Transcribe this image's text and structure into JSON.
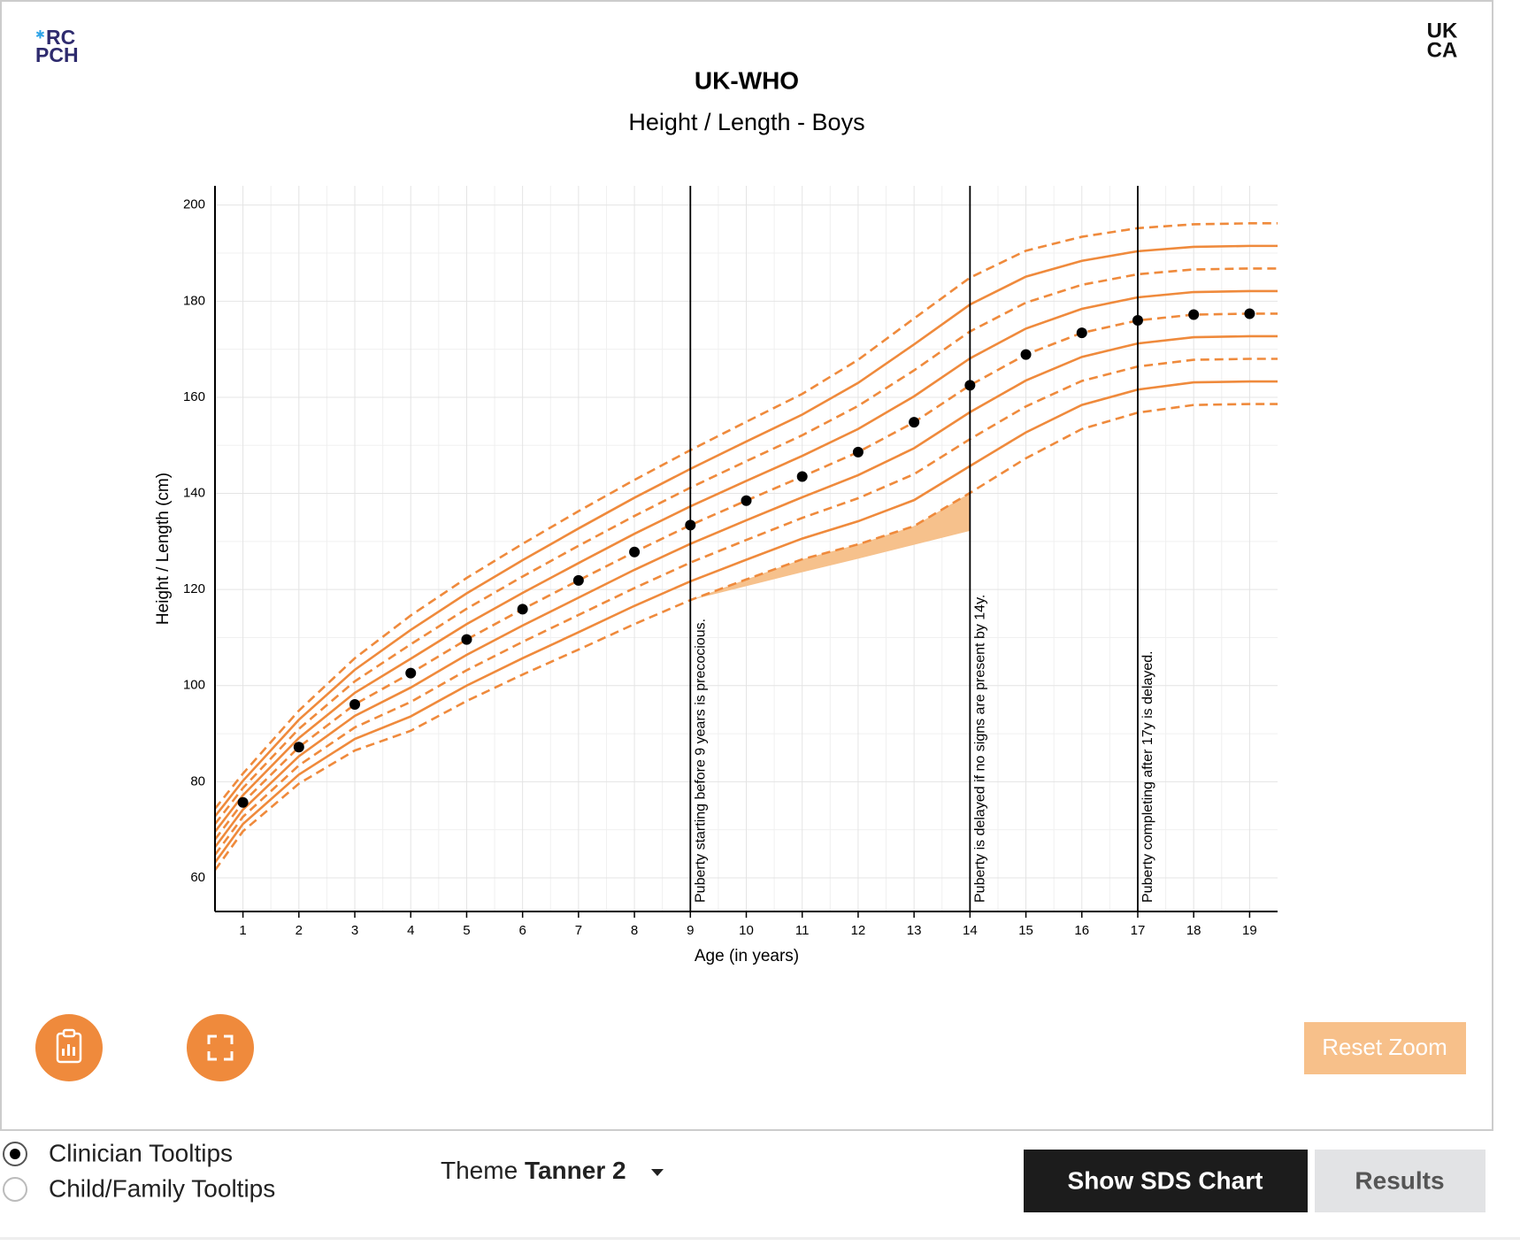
{
  "ui": {
    "logo_left": [
      "RC",
      "PCH"
    ],
    "logo_right": [
      "UK",
      "CA"
    ],
    "reset_zoom": "Reset Zoom",
    "radios": [
      {
        "label": "Clinician Tooltips",
        "checked": true
      },
      {
        "label": "Child/Family Tooltips",
        "checked": false
      }
    ],
    "theme_label": "Theme",
    "theme_value": "Tanner 2",
    "buttons": [
      "Show SDS Chart",
      "Results"
    ]
  },
  "chart_data": {
    "type": "line",
    "title": "UK-WHO",
    "subtitle": "Height / Length - Boys",
    "xlabel": "Age (in years)",
    "ylabel": "Height / Length (cm)",
    "xlim": [
      0.5,
      19.5
    ],
    "ylim": [
      53,
      204
    ],
    "xticks": [
      1,
      2,
      3,
      4,
      5,
      6,
      7,
      8,
      9,
      10,
      11,
      12,
      13,
      14,
      15,
      16,
      17,
      18,
      19
    ],
    "yticks": [
      60,
      80,
      100,
      120,
      140,
      160,
      180,
      200
    ],
    "grid": true,
    "minor_grid": true,
    "x": [
      0.5,
      1,
      2,
      3,
      4,
      5,
      6,
      7,
      8,
      9,
      10,
      11,
      12,
      13,
      14,
      15,
      16,
      17,
      18,
      19,
      19.5
    ],
    "series": [
      {
        "color": "#ef8a3c",
        "dash": true,
        "values": [
          61.6,
          69.7,
          79.6,
          86.5,
          90.6,
          96.8,
          102.3,
          107.5,
          112.8,
          117.8,
          122.1,
          126.3,
          129.4,
          133.2,
          140.1,
          147.3,
          153.4,
          156.8,
          158.4,
          158.6,
          158.6
        ]
      },
      {
        "color": "#ef8a3c",
        "dash": false,
        "values": [
          63.2,
          71.2,
          81.5,
          88.9,
          93.6,
          100.0,
          105.7,
          111.1,
          116.6,
          121.7,
          126.2,
          130.6,
          134.2,
          138.6,
          145.7,
          152.7,
          158.4,
          161.6,
          163.1,
          163.3,
          163.3
        ]
      },
      {
        "color": "#ef8a3c",
        "dash": true,
        "values": [
          64.8,
          72.7,
          83.4,
          91.3,
          96.6,
          103.2,
          109.1,
          114.7,
          120.3,
          125.6,
          130.3,
          134.9,
          139.0,
          144.0,
          151.3,
          158.1,
          163.4,
          166.4,
          167.8,
          168.0,
          168.0
        ]
      },
      {
        "color": "#ef8a3c",
        "dash": false,
        "values": [
          66.4,
          74.2,
          85.3,
          93.7,
          99.6,
          106.4,
          112.5,
          118.3,
          124.1,
          129.5,
          134.4,
          139.2,
          143.8,
          149.4,
          156.9,
          163.5,
          168.4,
          171.2,
          172.5,
          172.7,
          172.7
        ]
      },
      {
        "color": "#ef8a3c",
        "dash": true,
        "values": [
          68,
          75.7,
          87.2,
          96.1,
          102.6,
          109.6,
          115.9,
          121.9,
          127.8,
          133.4,
          138.5,
          143.5,
          148.6,
          154.8,
          162.5,
          168.9,
          173.4,
          176.0,
          177.2,
          177.4,
          177.4
        ]
      },
      {
        "color": "#ef8a3c",
        "dash": false,
        "values": [
          69.6,
          77.2,
          89.1,
          98.5,
          105.6,
          112.8,
          119.3,
          125.5,
          131.6,
          137.3,
          142.6,
          147.8,
          153.4,
          160.2,
          168.1,
          174.3,
          178.4,
          180.8,
          181.9,
          182.1,
          182.1
        ]
      },
      {
        "color": "#ef8a3c",
        "dash": true,
        "values": [
          71.2,
          78.7,
          91.0,
          100.9,
          108.6,
          116.0,
          122.7,
          129.1,
          135.3,
          141.2,
          146.7,
          152.1,
          158.2,
          165.6,
          173.7,
          179.7,
          183.4,
          185.6,
          186.6,
          186.8,
          186.8
        ]
      },
      {
        "color": "#ef8a3c",
        "dash": false,
        "values": [
          72.8,
          80.2,
          92.9,
          103.3,
          111.6,
          119.2,
          126.1,
          132.7,
          139.1,
          145.1,
          150.8,
          156.4,
          163.0,
          171.0,
          179.3,
          185.1,
          188.4,
          190.4,
          191.3,
          191.5,
          191.5
        ]
      },
      {
        "color": "#ef8a3c",
        "dash": true,
        "values": [
          74.4,
          81.7,
          94.8,
          105.7,
          114.6,
          122.4,
          129.5,
          136.3,
          142.8,
          149.0,
          154.9,
          160.7,
          167.8,
          176.4,
          184.9,
          190.5,
          193.4,
          195.2,
          196.0,
          196.2,
          196.2
        ]
      }
    ],
    "shade": {
      "color": "#f6c18c",
      "x": [
        9,
        10,
        11,
        12,
        13,
        14
      ],
      "upper": [
        117.8,
        122.1,
        126.3,
        129.4,
        133.2,
        140.1
      ],
      "lower": [
        117.8,
        120.7,
        123.6,
        126.4,
        129.3,
        132.2
      ]
    },
    "points": {
      "color": "#000000",
      "x": [
        1,
        2,
        3,
        4,
        5,
        6,
        7,
        8,
        9,
        10,
        11,
        12,
        13,
        14,
        15,
        16,
        17,
        18,
        19
      ],
      "values": [
        75.7,
        87.2,
        96.1,
        102.6,
        109.6,
        115.9,
        121.9,
        127.8,
        133.4,
        138.5,
        143.5,
        148.6,
        154.8,
        162.5,
        168.9,
        173.4,
        176.0,
        177.2,
        177.4
      ]
    },
    "annotations": [
      {
        "x": 9,
        "label": "Puberty starting before 9 years is precocious."
      },
      {
        "x": 14,
        "label": "Puberty is delayed if no signs are present by 14y."
      },
      {
        "x": 17,
        "label": "Puberty completing after 17y is delayed."
      }
    ]
  }
}
